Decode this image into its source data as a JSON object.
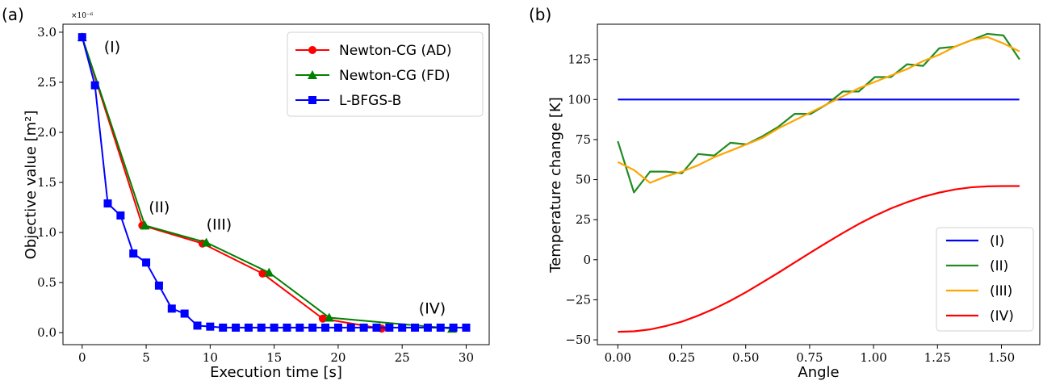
{
  "chart_data": [
    {
      "type": "line",
      "panel_label": "(a)",
      "xlabel": "Execution time [s]",
      "ylabel": "Objective value [m²]",
      "y_scale_note": "×10⁻⁶",
      "xlim": [
        -1.5,
        31.8
      ],
      "ylim": [
        -0.12,
        3.08
      ],
      "xticks": [
        0,
        5,
        10,
        15,
        20,
        25,
        30
      ],
      "yticks": [
        0.0,
        0.5,
        1.0,
        1.5,
        2.0,
        2.5,
        3.0
      ],
      "legend_position": "top-right",
      "series": [
        {
          "name": "Newton-CG (AD)",
          "color": "#ff0000",
          "marker": "circle",
          "x": [
            0,
            4.7,
            9.4,
            14.1,
            18.8,
            23.4
          ],
          "y": [
            2.95,
            1.07,
            0.89,
            0.59,
            0.14,
            0.04
          ]
        },
        {
          "name": "Newton-CG (FD)",
          "color": "#008000",
          "marker": "triangle",
          "x": [
            0,
            4.9,
            9.7,
            14.6,
            19.3,
            28.9
          ],
          "y": [
            2.95,
            1.07,
            0.9,
            0.6,
            0.15,
            0.04
          ]
        },
        {
          "name": "L-BFGS-B",
          "color": "#0000ff",
          "marker": "square",
          "x": [
            0,
            1,
            2,
            3,
            4,
            5,
            6,
            7,
            8,
            9,
            10,
            11,
            12,
            13,
            14,
            15,
            16,
            17,
            18,
            19,
            20,
            21,
            22,
            23,
            24,
            25,
            26,
            27,
            28,
            29,
            30
          ],
          "y": [
            2.95,
            2.47,
            1.29,
            1.17,
            0.79,
            0.7,
            0.47,
            0.24,
            0.19,
            0.07,
            0.06,
            0.05,
            0.05,
            0.05,
            0.05,
            0.05,
            0.05,
            0.05,
            0.05,
            0.05,
            0.05,
            0.05,
            0.05,
            0.05,
            0.05,
            0.05,
            0.05,
            0.05,
            0.05,
            0.05,
            0.05
          ]
        }
      ],
      "annotations": [
        {
          "text": "(I)",
          "x": 1.7,
          "y": 2.8
        },
        {
          "text": "(II)",
          "x": 5.2,
          "y": 1.2
        },
        {
          "text": "(III)",
          "x": 9.7,
          "y": 1.03
        },
        {
          "text": "(IV)",
          "x": 26.3,
          "y": 0.19
        }
      ]
    },
    {
      "type": "line",
      "panel_label": "(b)",
      "xlabel": "Angle",
      "ylabel": "Temperature change [K]",
      "xlim": [
        -0.08,
        1.65
      ],
      "ylim": [
        -53,
        147
      ],
      "xticks": [
        "0.00",
        "0.25",
        "0.50",
        "0.75",
        "1.00",
        "1.25",
        "1.50"
      ],
      "yticks": [
        "−50",
        "−25",
        "0",
        "25",
        "50",
        "75",
        "100",
        "125"
      ],
      "legend_position": "bottom-right",
      "series": [
        {
          "name": "(I)",
          "color": "#0000ff",
          "x": [
            0,
            1.57
          ],
          "y": [
            100,
            100
          ]
        },
        {
          "name": "(II)",
          "color": "#228b22",
          "x": [
            0,
            0.063,
            0.126,
            0.188,
            0.251,
            0.314,
            0.377,
            0.44,
            0.503,
            0.565,
            0.628,
            0.691,
            0.754,
            0.817,
            0.88,
            0.942,
            1.005,
            1.068,
            1.131,
            1.194,
            1.257,
            1.319,
            1.382,
            1.445,
            1.508,
            1.571
          ],
          "y": [
            74,
            42,
            55,
            55,
            54,
            66,
            65,
            73,
            72,
            77,
            83,
            91,
            91,
            97,
            105,
            105,
            114,
            114,
            122,
            121,
            132,
            133,
            137,
            141,
            140,
            125
          ]
        },
        {
          "name": "(III)",
          "color": "#ffa500",
          "x": [
            0,
            0.063,
            0.126,
            0.188,
            0.251,
            0.314,
            0.377,
            0.44,
            0.503,
            0.565,
            0.628,
            0.691,
            0.754,
            0.817,
            0.88,
            0.942,
            1.005,
            1.068,
            1.131,
            1.194,
            1.257,
            1.319,
            1.382,
            1.445,
            1.508,
            1.571
          ],
          "y": [
            61,
            56,
            48,
            52,
            55,
            59,
            64,
            68,
            72,
            76,
            82,
            87,
            92,
            97,
            102,
            107,
            111,
            115,
            119,
            124,
            128,
            133,
            137,
            139,
            135,
            130
          ]
        },
        {
          "name": "(IV)",
          "color": "#ff0000",
          "x": [
            0,
            0.063,
            0.126,
            0.188,
            0.251,
            0.314,
            0.377,
            0.44,
            0.503,
            0.565,
            0.628,
            0.691,
            0.754,
            0.817,
            0.88,
            0.942,
            1.005,
            1.068,
            1.131,
            1.194,
            1.257,
            1.319,
            1.382,
            1.445,
            1.508,
            1.571
          ],
          "y": [
            -45,
            -44.7,
            -43.5,
            -41.4,
            -38.6,
            -34.9,
            -30.6,
            -25.6,
            -20.1,
            -14.2,
            -8.1,
            -1.8,
            4.5,
            10.7,
            16.7,
            22.3,
            27.4,
            32,
            35.9,
            39.3,
            41.9,
            43.9,
            45.2,
            45.8,
            46,
            46
          ]
        }
      ]
    }
  ]
}
